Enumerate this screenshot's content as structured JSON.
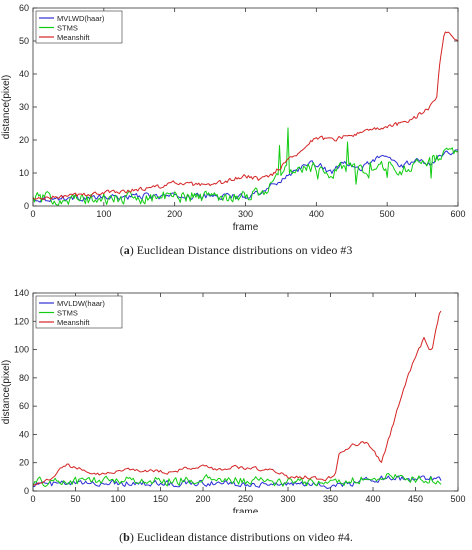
{
  "chart_data": [
    {
      "type": "line",
      "caption_tag": "a",
      "caption_text": "Euclidean Distance distributions on video #3",
      "xlabel": "frame",
      "ylabel": "distance(pixel)",
      "xlim": [
        0,
        600
      ],
      "ylim": [
        0,
        60
      ],
      "xticks": [
        0,
        100,
        200,
        300,
        400,
        500,
        600
      ],
      "yticks": [
        0,
        10,
        20,
        30,
        40,
        50,
        60
      ],
      "legend_position": "top-left",
      "series": [
        {
          "name": "MVLWD(haar)",
          "color": "#2d2dd6",
          "keypoints": [
            [
              0,
              2
            ],
            [
              50,
              2.5
            ],
            [
              100,
              2.5
            ],
            [
              150,
              3
            ],
            [
              200,
              3
            ],
            [
              250,
              3
            ],
            [
              300,
              3
            ],
            [
              330,
              5
            ],
            [
              350,
              8
            ],
            [
              380,
              12
            ],
            [
              400,
              13
            ],
            [
              420,
              10
            ],
            [
              440,
              13
            ],
            [
              460,
              11
            ],
            [
              480,
              14
            ],
            [
              500,
              15
            ],
            [
              520,
              12
            ],
            [
              540,
              14
            ],
            [
              560,
              13
            ],
            [
              580,
              16
            ],
            [
              600,
              17
            ]
          ],
          "noise": 1.2,
          "spikes": 0
        },
        {
          "name": "STMS",
          "color": "#11cc11",
          "keypoints": [
            [
              0,
              2.5
            ],
            [
              50,
              2
            ],
            [
              100,
              2
            ],
            [
              150,
              2.5
            ],
            [
              200,
              3
            ],
            [
              250,
              3
            ],
            [
              300,
              3
            ],
            [
              330,
              5
            ],
            [
              350,
              10
            ],
            [
              380,
              12
            ],
            [
              400,
              12
            ],
            [
              420,
              10
            ],
            [
              440,
              12
            ],
            [
              460,
              11
            ],
            [
              480,
              12
            ],
            [
              500,
              12
            ],
            [
              520,
              11
            ],
            [
              540,
              13
            ],
            [
              560,
              13
            ],
            [
              580,
              15
            ],
            [
              600,
              18
            ]
          ],
          "noise": 2.5,
          "spikes": 10
        },
        {
          "name": "Meanshift",
          "color": "#d42424",
          "keypoints": [
            [
              0,
              2
            ],
            [
              50,
              3
            ],
            [
              100,
              4
            ],
            [
              150,
              5
            ],
            [
              180,
              6
            ],
            [
              200,
              7
            ],
            [
              250,
              6
            ],
            [
              280,
              8
            ],
            [
              300,
              9
            ],
            [
              320,
              8
            ],
            [
              340,
              10
            ],
            [
              360,
              14
            ],
            [
              380,
              17
            ],
            [
              400,
              21
            ],
            [
              420,
              20
            ],
            [
              440,
              21
            ],
            [
              460,
              22
            ],
            [
              480,
              23
            ],
            [
              500,
              24
            ],
            [
              520,
              25
            ],
            [
              540,
              27
            ],
            [
              560,
              30
            ],
            [
              570,
              33
            ],
            [
              575,
              45
            ],
            [
              580,
              52
            ],
            [
              585,
              53
            ],
            [
              600,
              50
            ]
          ],
          "noise": 0.9,
          "spikes": 0
        }
      ]
    },
    {
      "type": "line",
      "caption_tag": "b",
      "caption_text": "Euclidean distance distributions on video #4.",
      "xlabel": "frame",
      "ylabel": "distance(pixel)",
      "xlim": [
        0,
        500
      ],
      "ylim": [
        0,
        140
      ],
      "xticks": [
        0,
        50,
        100,
        150,
        200,
        250,
        300,
        350,
        400,
        450,
        500
      ],
      "yticks": [
        0,
        20,
        40,
        60,
        80,
        100,
        120,
        140
      ],
      "legend_position": "top-left",
      "series": [
        {
          "name": "MVLDW(haar)",
          "color": "#2d2dd6",
          "keypoints": [
            [
              0,
              5
            ],
            [
              50,
              5
            ],
            [
              100,
              6
            ],
            [
              150,
              5
            ],
            [
              200,
              6
            ],
            [
              250,
              5
            ],
            [
              300,
              5
            ],
            [
              350,
              4
            ],
            [
              380,
              6
            ],
            [
              400,
              8
            ],
            [
              420,
              10
            ],
            [
              440,
              8
            ],
            [
              460,
              9
            ],
            [
              480,
              9
            ]
          ],
          "noise": 3.0,
          "spikes": 0
        },
        {
          "name": "STMS",
          "color": "#11cc11",
          "keypoints": [
            [
              0,
              6
            ],
            [
              50,
              7
            ],
            [
              100,
              8
            ],
            [
              150,
              7
            ],
            [
              200,
              8
            ],
            [
              250,
              7
            ],
            [
              300,
              6
            ],
            [
              350,
              6
            ],
            [
              380,
              8
            ],
            [
              400,
              9
            ],
            [
              420,
              10
            ],
            [
              440,
              9
            ],
            [
              460,
              8
            ],
            [
              480,
              8
            ]
          ],
          "noise": 4.5,
          "spikes": 0
        },
        {
          "name": "Meanshift",
          "color": "#d42424",
          "keypoints": [
            [
              0,
              5
            ],
            [
              20,
              8
            ],
            [
              30,
              15
            ],
            [
              40,
              18
            ],
            [
              60,
              15
            ],
            [
              80,
              12
            ],
            [
              100,
              14
            ],
            [
              120,
              15
            ],
            [
              140,
              14
            ],
            [
              160,
              13
            ],
            [
              180,
              16
            ],
            [
              200,
              17
            ],
            [
              220,
              15
            ],
            [
              240,
              17
            ],
            [
              260,
              16
            ],
            [
              280,
              15
            ],
            [
              300,
              10
            ],
            [
              320,
              10
            ],
            [
              340,
              8
            ],
            [
              355,
              10
            ],
            [
              360,
              25
            ],
            [
              375,
              33
            ],
            [
              390,
              34
            ],
            [
              395,
              33
            ],
            [
              410,
              20
            ],
            [
              420,
              40
            ],
            [
              440,
              80
            ],
            [
              460,
              108
            ],
            [
              465,
              100
            ],
            [
              470,
              102
            ],
            [
              478,
              125
            ],
            [
              480,
              128
            ]
          ],
          "noise": 1.8,
          "spikes": 0
        }
      ]
    }
  ]
}
